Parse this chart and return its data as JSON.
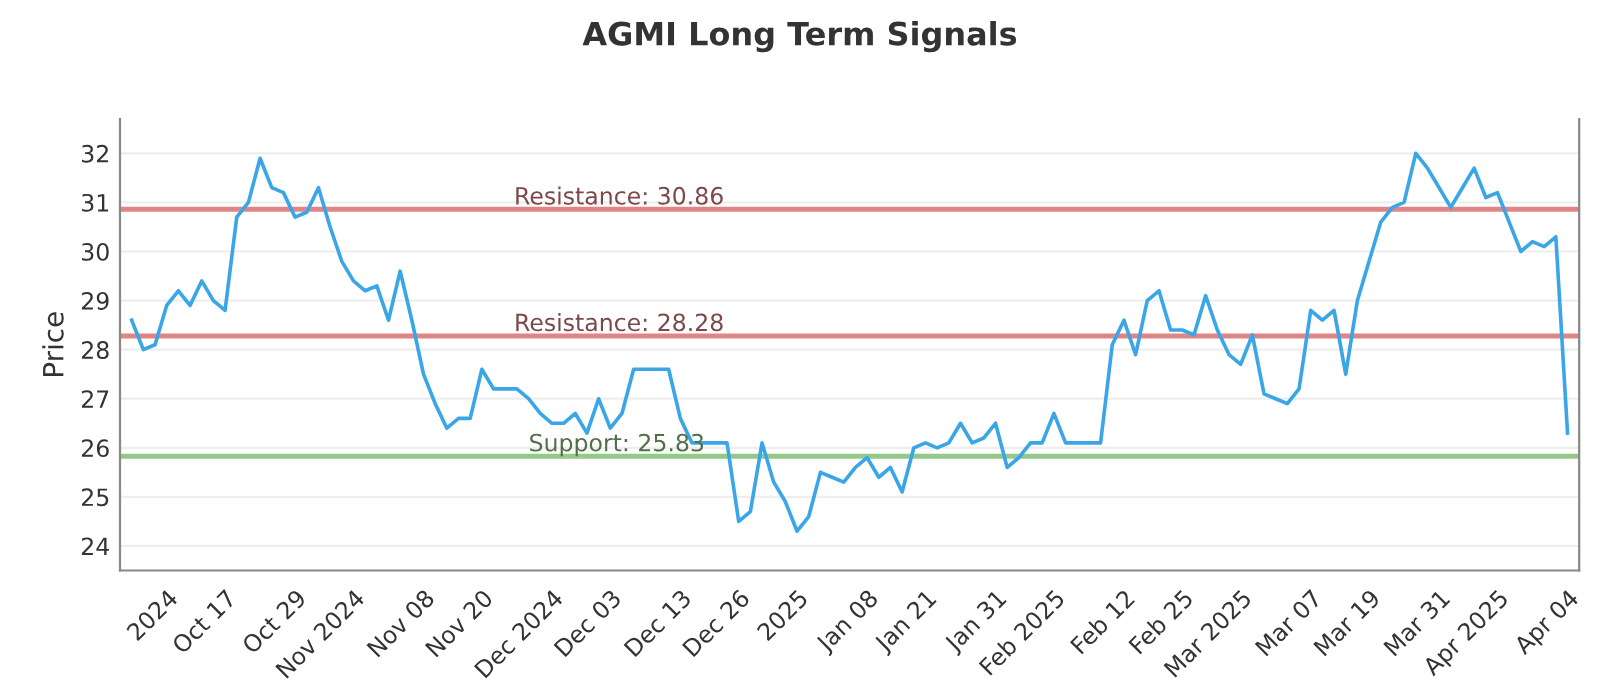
{
  "chart_data": {
    "type": "line",
    "title": "AGMI Long Term Signals",
    "ylabel": "Price",
    "categories": [
      null,
      null,
      null,
      "2024",
      null,
      null,
      null,
      null,
      "Oct 17",
      null,
      null,
      null,
      null,
      null,
      "Oct 29",
      null,
      null,
      null,
      null,
      "Nov 2024",
      null,
      null,
      null,
      null,
      null,
      "Nov 08",
      null,
      null,
      null,
      null,
      "Nov 20",
      null,
      null,
      null,
      null,
      null,
      "Dec 2024",
      null,
      null,
      null,
      null,
      "Dec 03",
      null,
      null,
      null,
      null,
      null,
      "Dec 13",
      null,
      null,
      null,
      null,
      "Dec 26",
      null,
      null,
      null,
      null,
      "2025",
      null,
      null,
      null,
      null,
      null,
      "Jan 08",
      null,
      null,
      null,
      null,
      "Jan 21",
      null,
      null,
      null,
      null,
      null,
      "Jan 31",
      null,
      null,
      null,
      null,
      "Feb 2025",
      null,
      null,
      null,
      null,
      null,
      "Feb 12",
      null,
      null,
      null,
      null,
      "Feb 25",
      null,
      null,
      null,
      null,
      "Mar 2025",
      null,
      null,
      null,
      null,
      null,
      "Mar 07",
      null,
      null,
      null,
      null,
      "Mar 19",
      null,
      null,
      null,
      null,
      null,
      "Mar 31",
      null,
      null,
      null,
      null,
      "Apr 2025",
      null,
      null,
      null,
      null,
      null,
      "Apr 04"
    ],
    "series": [
      {
        "color": "#3aa6e8",
        "values": [
          28.6,
          28.0,
          28.1,
          28.9,
          29.2,
          28.9,
          29.4,
          29.0,
          28.8,
          30.7,
          31.0,
          31.9,
          31.3,
          31.2,
          30.7,
          30.8,
          31.3,
          30.5,
          29.8,
          29.4,
          29.2,
          29.3,
          28.6,
          29.6,
          28.6,
          27.5,
          26.9,
          26.4,
          26.6,
          26.6,
          27.6,
          27.2,
          27.2,
          27.2,
          27.0,
          26.7,
          26.5,
          26.5,
          26.7,
          26.3,
          27.0,
          26.4,
          26.7,
          27.6,
          27.6,
          27.6,
          27.6,
          26.6,
          26.1,
          26.1,
          26.1,
          26.1,
          24.5,
          24.7,
          26.1,
          25.3,
          24.9,
          24.3,
          24.6,
          25.5,
          25.4,
          25.3,
          25.6,
          25.8,
          25.4,
          25.6,
          25.1,
          26.0,
          26.1,
          26.0,
          26.1,
          26.5,
          26.1,
          26.2,
          26.5,
          25.6,
          25.8,
          26.1,
          26.1,
          26.7,
          26.1,
          26.1,
          26.1,
          26.1,
          28.1,
          28.6,
          27.9,
          29.0,
          29.2,
          28.4,
          28.4,
          28.3,
          29.1,
          28.4,
          27.9,
          27.7,
          28.3,
          27.1,
          27.0,
          26.9,
          27.2,
          28.8,
          28.6,
          28.8,
          27.5,
          29.0,
          29.8,
          30.6,
          30.9,
          31.0,
          32.0,
          31.7,
          31.3,
          30.9,
          31.3,
          31.7,
          31.1,
          31.2,
          30.6,
          30.0,
          30.2,
          30.1,
          30.3,
          26.3
        ]
      }
    ],
    "ylim": [
      23.5,
      32.7
    ],
    "yticks": [
      24,
      25,
      26,
      27,
      28,
      29,
      30,
      31,
      32
    ],
    "grid": "y",
    "line_style": "solid",
    "marker": "none",
    "ref_lines": [
      {
        "axis": "y",
        "value": 30.86,
        "label": "Resistance: 30.86",
        "color": "#e08585"
      },
      {
        "axis": "y",
        "value": 28.28,
        "label": "Resistance: 28.28",
        "color": "#e08585"
      },
      {
        "axis": "y",
        "value": 25.83,
        "label": "Support: 25.83",
        "color": "#95c98a"
      }
    ]
  }
}
